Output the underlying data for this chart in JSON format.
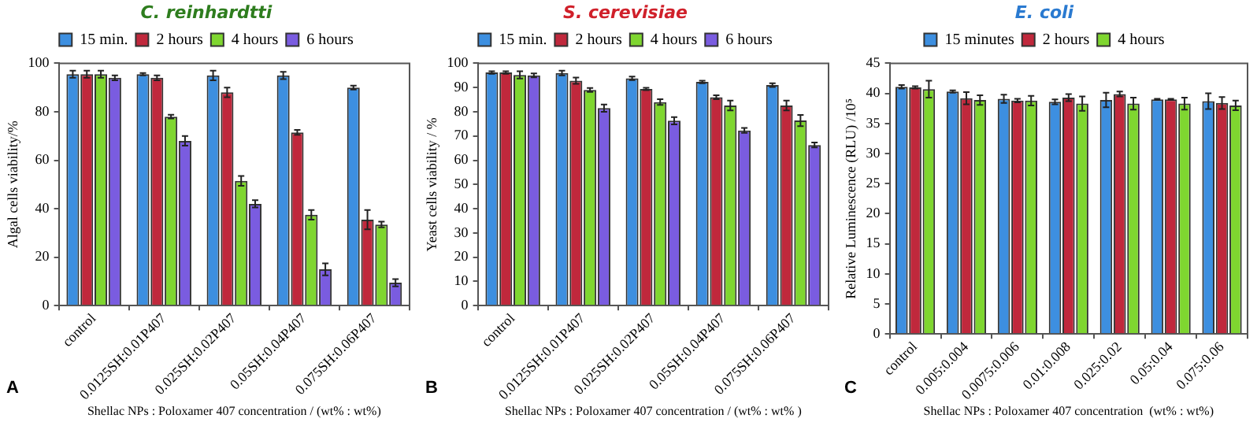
{
  "chart_data": [
    {
      "type": "bar",
      "title": "C. reinhardtti",
      "ylabel": "Algal cells viability/%",
      "xlabel": "Shellac NPs : Poloxamer 407 concentration / (wt% : wt%)",
      "annotations": [
        "A"
      ],
      "categories": [
        "control",
        "0.0125SH:0.01P407",
        "0.025SH:0.02P407",
        "0.05SH:0.04P407",
        "0.075SH:0.06P407"
      ],
      "ylim": [
        0,
        100
      ],
      "yticks": [
        0,
        20,
        40,
        60,
        80,
        100
      ],
      "grid": false,
      "legend": "top",
      "series": [
        {
          "name": "15 min.",
          "color": "#3d8fe0",
          "values": [
            95.5,
            95.5,
            95,
            95,
            90
          ],
          "errors": [
            1.5,
            0.5,
            2,
            1.5,
            0.8
          ]
        },
        {
          "name": "2 hours",
          "color": "#c0283c",
          "values": [
            95.5,
            94,
            88,
            71.5,
            35.5
          ],
          "errors": [
            1.5,
            1,
            2,
            1,
            4
          ]
        },
        {
          "name": "4 hours",
          "color": "#7fd630",
          "values": [
            95.5,
            78,
            51.5,
            37.5,
            33.5
          ],
          "errors": [
            1.5,
            0.8,
            2,
            2,
            1.2
          ]
        },
        {
          "name": "6 hours",
          "color": "#7a5ce0",
          "values": [
            94,
            68,
            42,
            15,
            9.5
          ],
          "errors": [
            1,
            2,
            1.5,
            2.5,
            1.5
          ]
        }
      ]
    },
    {
      "type": "bar",
      "title": "S. cerevisiae",
      "ylabel": "Yeast cells viability / %",
      "xlabel": "Shellac NPs : Poloxamer 407 concentration / (wt% : wt% )",
      "annotations": [
        "B"
      ],
      "categories": [
        "control",
        "0.0125SH:0.01P407",
        "0.025SH:0.02P407",
        "0.05SH:0.04P407",
        "0.075SH:0.06P407"
      ],
      "ylim": [
        0,
        100
      ],
      "yticks": [
        0,
        10,
        20,
        30,
        40,
        50,
        60,
        70,
        80,
        90,
        100
      ],
      "grid": false,
      "legend": "top",
      "series": [
        {
          "name": "15 min.",
          "color": "#3d8fe0",
          "values": [
            96.2,
            96,
            93.8,
            92.3,
            91
          ],
          "errors": [
            0.5,
            1,
            0.7,
            0.5,
            0.8
          ]
        },
        {
          "name": "2 hours",
          "color": "#c0283c",
          "values": [
            96.2,
            92.8,
            89.4,
            86,
            82.6
          ],
          "errors": [
            0.5,
            1.3,
            0.5,
            0.8,
            2
          ]
        },
        {
          "name": "4 hours",
          "color": "#7fd630",
          "values": [
            95.2,
            89,
            84,
            82.6,
            76.4
          ],
          "errors": [
            1.5,
            0.8,
            1.2,
            2,
            2.3
          ]
        },
        {
          "name": "6 hours",
          "color": "#7a5ce0",
          "values": [
            95,
            81.5,
            76.3,
            72.3,
            66.3
          ],
          "errors": [
            0.8,
            1.5,
            1.5,
            1,
            1
          ]
        }
      ]
    },
    {
      "type": "bar",
      "title": "E. coli",
      "ylabel": "Relative Luminescence (RLU) /10⁵",
      "xlabel": "Shellac NPs : Poloxamer 407 concentration  (wt% : wt%)",
      "annotations": [
        "C"
      ],
      "categories": [
        "control",
        "0.005:0.004",
        "0.0075:0.006",
        "0.01:0.008",
        "0.025:0.02",
        "0.05:0.04",
        "0.075:0.06"
      ],
      "ylim": [
        0,
        45
      ],
      "yticks": [
        0,
        5,
        10,
        15,
        20,
        25,
        30,
        35,
        40,
        45
      ],
      "grid": false,
      "legend": "top",
      "series": [
        {
          "name": "15 minutes",
          "color": "#3d8fe0",
          "values": [
            41.1,
            40.3,
            39.1,
            38.6,
            38.9,
            39,
            38.7
          ],
          "errors": [
            0.3,
            0.2,
            0.7,
            0.4,
            1.2,
            0.1,
            1.3
          ]
        },
        {
          "name": "2 hours",
          "color": "#c0283c",
          "values": [
            41,
            39.2,
            38.8,
            39.3,
            39.9,
            39,
            38.4
          ],
          "errors": [
            0.2,
            1,
            0.3,
            0.6,
            0.4,
            0.1,
            1
          ]
        },
        {
          "name": "4 hours",
          "color": "#7fd630",
          "values": [
            40.7,
            38.9,
            38.8,
            38.3,
            38.3,
            38.3,
            38
          ],
          "errors": [
            1.4,
            0.8,
            0.8,
            1.2,
            1,
            1,
            0.8
          ]
        }
      ]
    }
  ]
}
